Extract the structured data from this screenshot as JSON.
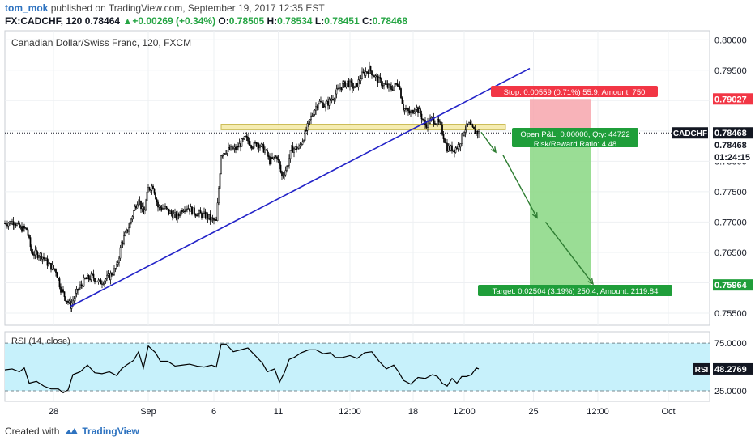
{
  "header": {
    "user": "tom_mok",
    "published": "published on TradingView.com, September 19, 2017 12:35 EST",
    "symbol": "FX:CADCHF, 120",
    "last": "0.78464",
    "change_arrow": "▲",
    "change": "+0.00269 (+0.34%)",
    "o_label": "O:",
    "o_value": "0.78505",
    "h_label": "H:",
    "h_value": "0.78534",
    "l_label": "L:",
    "l_value": "0.78451",
    "c_label": "C:",
    "c_value": "0.78468"
  },
  "footer": {
    "created_with": "Created with",
    "brand": "TradingView"
  },
  "colors": {
    "bull": "#ffffff",
    "bear": "#000000",
    "trendline": "#2323c8",
    "resistance_fill": "#f3e9a3",
    "resistance_stroke": "#c8b84a",
    "stop_zone": "#f7a6ad",
    "target_zone": "#8fd98a",
    "arrow": "#2e7d32",
    "rsi_band": "#c7f1fb",
    "rsi_line": "#000000",
    "label_red": "#f23645",
    "label_green": "#1f9e3a",
    "label_dark": "#131722"
  },
  "chart_data": {
    "type": "candlestick",
    "title": "Canadian Dollar/Swiss Franc, 120, FXCM",
    "ylim": [
      0.753,
      0.8015
    ],
    "yticks": [
      "0.80000",
      "0.79500",
      "0.79000",
      "0.78500",
      "0.78000",
      "0.77500",
      "0.77000",
      "0.76500",
      "0.76000",
      "0.75500"
    ],
    "ytick_values": [
      0.8,
      0.795,
      0.79,
      0.785,
      0.78,
      0.775,
      0.77,
      0.765,
      0.76,
      0.755
    ],
    "xticks": [
      "28",
      "Sep",
      "6",
      "11",
      "12:00",
      "18",
      "12:00",
      "25",
      "12:00",
      "Oct"
    ],
    "xtick_bars": [
      40,
      118,
      172,
      225,
      284,
      336,
      378,
      435,
      488,
      546
    ],
    "close_path": [
      [
        0,
        0.7698
      ],
      [
        8,
        0.7701
      ],
      [
        12,
        0.769
      ],
      [
        18,
        0.7688
      ],
      [
        22,
        0.765
      ],
      [
        30,
        0.7645
      ],
      [
        36,
        0.763
      ],
      [
        42,
        0.762
      ],
      [
        46,
        0.759
      ],
      [
        50,
        0.7575
      ],
      [
        54,
        0.7562
      ],
      [
        60,
        0.7588
      ],
      [
        66,
        0.7605
      ],
      [
        72,
        0.761
      ],
      [
        78,
        0.76
      ],
      [
        86,
        0.761
      ],
      [
        92,
        0.7625
      ],
      [
        96,
        0.7665
      ],
      [
        102,
        0.7692
      ],
      [
        106,
        0.7718
      ],
      [
        110,
        0.774
      ],
      [
        114,
        0.7712
      ],
      [
        118,
        0.7755
      ],
      [
        122,
        0.776
      ],
      [
        126,
        0.7725
      ],
      [
        132,
        0.7722
      ],
      [
        138,
        0.7712
      ],
      [
        142,
        0.7708
      ],
      [
        146,
        0.7722
      ],
      [
        150,
        0.7725
      ],
      [
        156,
        0.7716
      ],
      [
        162,
        0.7712
      ],
      [
        166,
        0.771
      ],
      [
        170,
        0.7704
      ],
      [
        174,
        0.77
      ],
      [
        178,
        0.7812
      ],
      [
        182,
        0.7818
      ],
      [
        190,
        0.782
      ],
      [
        198,
        0.7838
      ],
      [
        204,
        0.7826
      ],
      [
        208,
        0.783
      ],
      [
        214,
        0.7818
      ],
      [
        218,
        0.78
      ],
      [
        224,
        0.7808
      ],
      [
        228,
        0.7775
      ],
      [
        232,
        0.779
      ],
      [
        236,
        0.782
      ],
      [
        242,
        0.7822
      ],
      [
        246,
        0.784
      ],
      [
        250,
        0.7862
      ],
      [
        254,
        0.7882
      ],
      [
        258,
        0.7898
      ],
      [
        264,
        0.7892
      ],
      [
        270,
        0.7906
      ],
      [
        276,
        0.7922
      ],
      [
        282,
        0.793
      ],
      [
        288,
        0.792
      ],
      [
        294,
        0.7942
      ],
      [
        300,
        0.7952
      ],
      [
        306,
        0.7936
      ],
      [
        312,
        0.7926
      ],
      [
        318,
        0.792
      ],
      [
        324,
        0.793
      ],
      [
        328,
        0.7888
      ],
      [
        334,
        0.7878
      ],
      [
        338,
        0.789
      ],
      [
        342,
        0.7878
      ],
      [
        346,
        0.786
      ],
      [
        352,
        0.787
      ],
      [
        358,
        0.786
      ],
      [
        360,
        0.7848
      ],
      [
        364,
        0.7822
      ],
      [
        370,
        0.782
      ],
      [
        374,
        0.7828
      ],
      [
        378,
        0.7852
      ],
      [
        382,
        0.786
      ],
      [
        386,
        0.785
      ],
      [
        390,
        0.7847
      ]
    ],
    "indicator": {
      "name": "RSI (14, close)",
      "ylim": [
        14,
        87
      ],
      "band": [
        25,
        75
      ],
      "yticks": [
        "75.0000",
        "25.0000"
      ],
      "ytick_values": [
        75,
        25
      ],
      "current_label": "RSI",
      "current_value": "48.2769",
      "path": [
        [
          0,
          47
        ],
        [
          6,
          48
        ],
        [
          12,
          45
        ],
        [
          16,
          49
        ],
        [
          20,
          33
        ],
        [
          26,
          35
        ],
        [
          32,
          30
        ],
        [
          38,
          27
        ],
        [
          44,
          27
        ],
        [
          48,
          23
        ],
        [
          52,
          26
        ],
        [
          56,
          42
        ],
        [
          62,
          45
        ],
        [
          68,
          52
        ],
        [
          74,
          44
        ],
        [
          80,
          43
        ],
        [
          86,
          45
        ],
        [
          92,
          41
        ],
        [
          96,
          48
        ],
        [
          100,
          52
        ],
        [
          106,
          57
        ],
        [
          110,
          66
        ],
        [
          114,
          49
        ],
        [
          118,
          72
        ],
        [
          124,
          65
        ],
        [
          128,
          56
        ],
        [
          134,
          56
        ],
        [
          140,
          51
        ],
        [
          146,
          52
        ],
        [
          152,
          53
        ],
        [
          158,
          51
        ],
        [
          164,
          50
        ],
        [
          170,
          52
        ],
        [
          174,
          50
        ],
        [
          178,
          74
        ],
        [
          182,
          74
        ],
        [
          188,
          66
        ],
        [
          194,
          68
        ],
        [
          200,
          70
        ],
        [
          206,
          62
        ],
        [
          212,
          54
        ],
        [
          216,
          45
        ],
        [
          222,
          48
        ],
        [
          226,
          34
        ],
        [
          230,
          44
        ],
        [
          234,
          58
        ],
        [
          238,
          60
        ],
        [
          244,
          65
        ],
        [
          250,
          68
        ],
        [
          256,
          68
        ],
        [
          262,
          64
        ],
        [
          268,
          65
        ],
        [
          272,
          60
        ],
        [
          278,
          60
        ],
        [
          284,
          62
        ],
        [
          290,
          59
        ],
        [
          296,
          65
        ],
        [
          302,
          66
        ],
        [
          308,
          56
        ],
        [
          314,
          48
        ],
        [
          320,
          52
        ],
        [
          324,
          45
        ],
        [
          328,
          36
        ],
        [
          334,
          32
        ],
        [
          340,
          39
        ],
        [
          346,
          38
        ],
        [
          352,
          42
        ],
        [
          356,
          40
        ],
        [
          360,
          33
        ],
        [
          364,
          30
        ],
        [
          368,
          38
        ],
        [
          372,
          33
        ],
        [
          376,
          40
        ],
        [
          380,
          40
        ],
        [
          384,
          42
        ],
        [
          388,
          49
        ],
        [
          390,
          48
        ]
      ]
    },
    "drawings": {
      "trendline": [
        [
          54,
          0.7561
        ],
        [
          432,
          0.7953
        ]
      ],
      "resistance_zone": {
        "from": 178,
        "to": 412,
        "top": 0.7861,
        "bottom": 0.7852
      },
      "short_position": {
        "start": 432,
        "end": 482,
        "entry": 0.78468,
        "stop": 0.79027,
        "target": 0.75964,
        "stop_label": "Stop: 0.00559 (0.71%) 55.9, Amount: 750",
        "target_label": "Target: 0.02504 (3.19%) 250.4, Amount: 2119.84",
        "pnl_label": "Open P&L: 0.00000, Qty: 44722",
        "rr_label": "Risk/Reward Ratio: 4.48"
      },
      "projection": [
        [
          392,
          0.7848
        ],
        [
          404,
          0.7815
        ],
        [
          410,
          0.781
        ],
        [
          438,
          0.7707
        ],
        [
          445,
          0.77
        ],
        [
          484,
          0.7598
        ]
      ]
    },
    "price_labels": {
      "stop": "0.79027",
      "symbol_tag": "CADCHF",
      "current": "0.78468",
      "current2": "0.78468",
      "countdown": "01:24:15",
      "target": "0.75964"
    }
  }
}
